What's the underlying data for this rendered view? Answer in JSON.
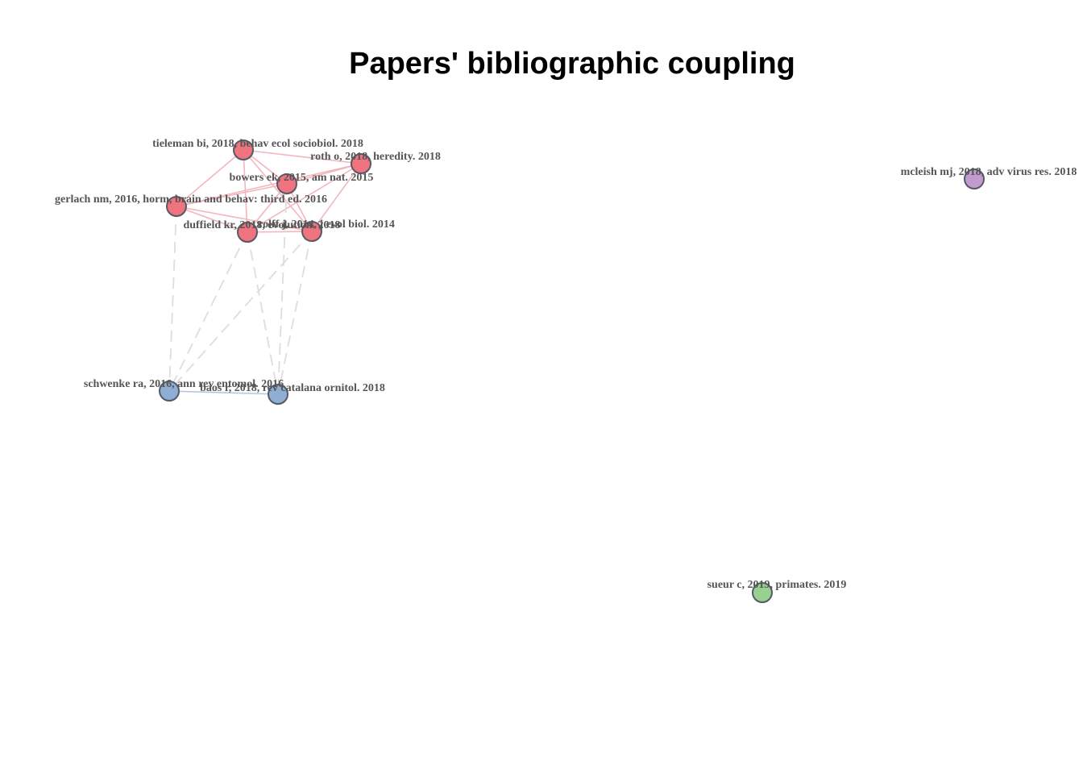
{
  "title": "Papers' bibliographic coupling",
  "clusters": [
    {
      "id": "red",
      "color": "#f07480",
      "edge_color": "#f4b6bd"
    },
    {
      "id": "blue",
      "color": "#8eaed3",
      "edge_color": "#b3c7de"
    },
    {
      "id": "purple",
      "color": "#c39bce"
    },
    {
      "id": "green",
      "color": "#98d08f"
    }
  ],
  "nodes": [
    {
      "id": "tieleman",
      "label": "tieleman bi, 2018, behav ecol sociobiol. 2018",
      "cluster": "red"
    },
    {
      "id": "roth",
      "label": "roth o, 2018, heredity. 2018",
      "cluster": "red"
    },
    {
      "id": "bowers",
      "label": "bowers ek, 2015, am nat. 2015",
      "cluster": "red"
    },
    {
      "id": "gerlach",
      "label": "gerlach nm, 2016, horm, brain and behav: third ed. 2016",
      "cluster": "red"
    },
    {
      "id": "duffield",
      "label": "duffield kr, 2018, evolution. 2018",
      "cluster": "red"
    },
    {
      "id": "rolff",
      "label": "rolff j, 2014, j evol biol. 2014",
      "cluster": "red"
    },
    {
      "id": "schwenke",
      "label": "schwenke ra, 2016, ann rev entomol. 2016",
      "cluster": "blue"
    },
    {
      "id": "baos",
      "label": "baos r, 2018, rev catalana ornitol. 2018",
      "cluster": "blue"
    },
    {
      "id": "mcleish",
      "label": "mcleish mj, 2018, adv virus res. 2018",
      "cluster": "purple"
    },
    {
      "id": "sueur",
      "label": "sueur c, 2019, primates. 2019",
      "cluster": "green"
    }
  ],
  "edges": [
    {
      "from": "tieleman",
      "to": "roth",
      "style": "solid"
    },
    {
      "from": "tieleman",
      "to": "bowers",
      "style": "solid"
    },
    {
      "from": "tieleman",
      "to": "gerlach",
      "style": "solid"
    },
    {
      "from": "tieleman",
      "to": "duffield",
      "style": "solid"
    },
    {
      "from": "tieleman",
      "to": "rolff",
      "style": "solid"
    },
    {
      "from": "roth",
      "to": "bowers",
      "style": "solid"
    },
    {
      "from": "roth",
      "to": "duffield",
      "style": "solid"
    },
    {
      "from": "roth",
      "to": "rolff",
      "style": "solid"
    },
    {
      "from": "roth",
      "to": "gerlach",
      "style": "solid"
    },
    {
      "from": "bowers",
      "to": "gerlach",
      "style": "solid"
    },
    {
      "from": "bowers",
      "to": "duffield",
      "style": "solid"
    },
    {
      "from": "bowers",
      "to": "rolff",
      "style": "solid"
    },
    {
      "from": "gerlach",
      "to": "duffield",
      "style": "solid"
    },
    {
      "from": "gerlach",
      "to": "rolff",
      "style": "solid"
    },
    {
      "from": "duffield",
      "to": "rolff",
      "style": "solid"
    },
    {
      "from": "schwenke",
      "to": "baos",
      "style": "solid"
    },
    {
      "from": "gerlach",
      "to": "schwenke",
      "style": "dashed"
    },
    {
      "from": "duffield",
      "to": "schwenke",
      "style": "dashed"
    },
    {
      "from": "rolff",
      "to": "schwenke",
      "style": "dashed"
    },
    {
      "from": "duffield",
      "to": "baos",
      "style": "dashed"
    },
    {
      "from": "rolff",
      "to": "baos",
      "style": "dashed"
    },
    {
      "from": "bowers",
      "to": "baos",
      "style": "dashed"
    }
  ],
  "dashed_edge_color": "#dddddd"
}
